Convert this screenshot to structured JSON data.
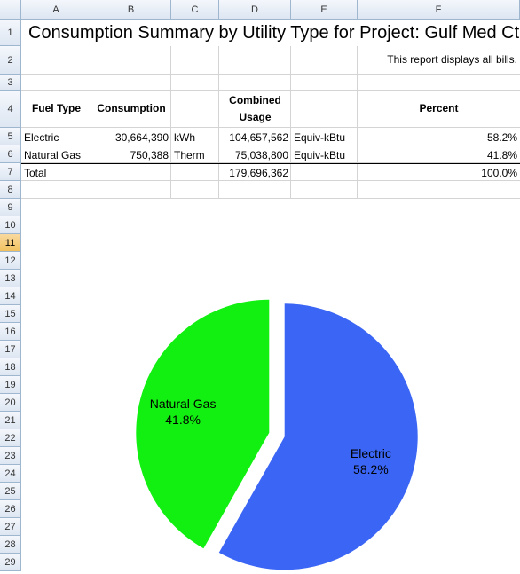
{
  "columns": [
    "A",
    "B",
    "C",
    "D",
    "E",
    "F"
  ],
  "rows": [
    1,
    2,
    3,
    4,
    5,
    6,
    7,
    8,
    9,
    10,
    11,
    12,
    13,
    14,
    15,
    16,
    17,
    18,
    19,
    20,
    21,
    22,
    23,
    24,
    25,
    26,
    27,
    28,
    29
  ],
  "title": "Consumption Summary by Utility Type for Project: Gulf Med Ctr",
  "note": "This report displays all bills.",
  "table": {
    "header": {
      "fuel_type": "Fuel Type",
      "consumption": "Consumption",
      "combined_usage": "Combined Usage",
      "percent": "Percent"
    },
    "rows": [
      {
        "fuel_type": "Electric",
        "consumption": "30,664,390",
        "unit": "kWh",
        "combined_usage": "104,657,562",
        "combined_unit": "Equiv-kBtu",
        "percent": "58.2%"
      },
      {
        "fuel_type": "Natural Gas",
        "consumption": "750,388",
        "unit": "Therm",
        "combined_usage": "75,038,800",
        "combined_unit": "Equiv-kBtu",
        "percent": "41.8%"
      }
    ],
    "total": {
      "label": "Total",
      "combined_usage": "179,696,362",
      "percent": "100.0%"
    }
  },
  "chart_data": {
    "type": "pie",
    "categories": [
      "Electric",
      "Natural Gas"
    ],
    "values": [
      58.2,
      41.8
    ],
    "value_labels": [
      "58.2%",
      "41.8%"
    ],
    "colors": [
      "#3b66f5",
      "#12f012"
    ]
  }
}
